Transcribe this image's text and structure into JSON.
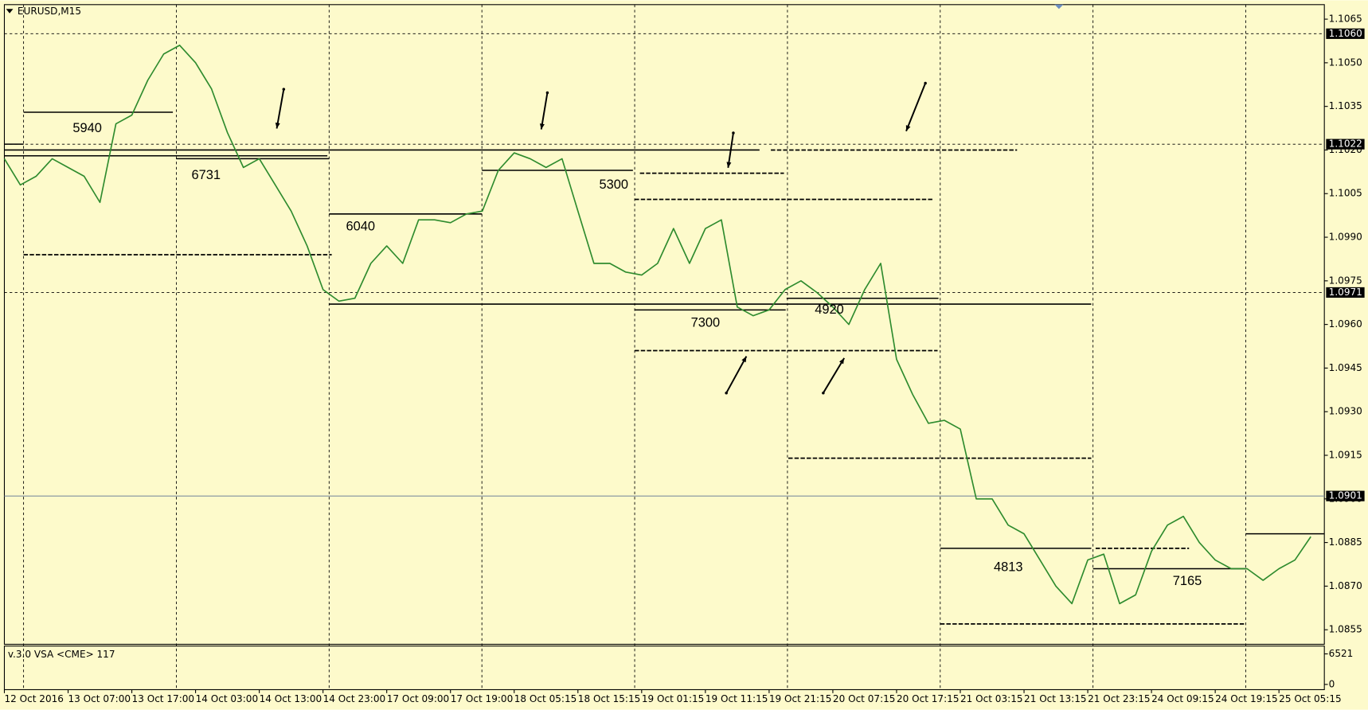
{
  "chart_data": {
    "type": "line",
    "title": "EURUSD,M15",
    "categories": [
      "12 Oct 2016",
      null,
      null,
      null,
      "13 Oct 07:00",
      null,
      null,
      null,
      "13 Oct 17:00",
      null,
      null,
      null,
      "14 Oct 03:00",
      null,
      null,
      null,
      "14 Oct 13:00",
      null,
      null,
      null,
      "14 Oct 23:00",
      null,
      null,
      null,
      "17 Oct 09:00",
      null,
      null,
      null,
      "17 Oct 19:00",
      null,
      null,
      null,
      "18 Oct 05:15",
      null,
      null,
      null,
      "18 Oct 15:15",
      null,
      null,
      null,
      "19 Oct 01:15",
      null,
      null,
      null,
      "19 Oct 11:15",
      null,
      null,
      null,
      "19 Oct 21:15",
      null,
      null,
      null,
      "20 Oct 07:15",
      null,
      null,
      null,
      "20 Oct 17:15",
      null,
      null,
      null,
      "21 Oct 03:15",
      null,
      null,
      null,
      "21 Oct 13:15",
      null,
      null,
      null,
      "21 Oct 23:15",
      null,
      null,
      null,
      "24 Oct 09:15",
      null,
      null,
      null,
      "24 Oct 19:15",
      null,
      null,
      null,
      "25 Oct 05:15",
      null,
      null
    ],
    "values": [
      1.1017,
      1.1008,
      1.1011,
      1.1017,
      1.1014,
      1.1011,
      1.1002,
      1.1029,
      1.1032,
      1.1044,
      1.1053,
      1.1056,
      1.105,
      1.1041,
      1.1026,
      1.1014,
      1.1017,
      1.1008,
      1.0999,
      1.0987,
      1.0972,
      1.0968,
      1.0969,
      1.0981,
      1.0987,
      1.0981,
      1.0996,
      1.0996,
      1.0995,
      1.0998,
      1.0999,
      1.1013,
      1.1019,
      1.1017,
      1.1014,
      1.1017,
      1.0999,
      1.0981,
      1.0981,
      1.0978,
      1.0977,
      1.0981,
      1.0993,
      1.0981,
      1.0993,
      1.0996,
      1.0966,
      1.0963,
      1.0965,
      1.0972,
      1.0975,
      1.0971,
      1.0966,
      1.096,
      1.0972,
      1.0981,
      1.0948,
      1.0936,
      1.0926,
      1.0927,
      1.0924,
      1.09,
      1.09,
      1.0891,
      1.0888,
      1.0879,
      1.087,
      1.0864,
      1.0879,
      1.0881,
      1.0864,
      1.0867,
      1.0882,
      1.0891,
      1.0894,
      1.0885,
      1.0879,
      1.0876,
      1.0876,
      1.0872,
      1.0876,
      1.0879,
      1.0887
    ],
    "color": "#2e8b2e",
    "ylim": [
      1.085,
      1.107
    ],
    "yticks": [
      {
        "value": 1.1065,
        "label": "1.1065"
      },
      {
        "value": 1.105,
        "label": "1.1050"
      },
      {
        "value": 1.1035,
        "label": "1.1035"
      },
      {
        "value": 1.102,
        "label": "1.1020"
      },
      {
        "value": 1.1005,
        "label": "1.1005"
      },
      {
        "value": 1.099,
        "label": "1.0990"
      },
      {
        "value": 1.0975,
        "label": "1.0975"
      },
      {
        "value": 1.096,
        "label": "1.0960"
      },
      {
        "value": 1.0945,
        "label": "1.0945"
      },
      {
        "value": 1.093,
        "label": "1.0930"
      },
      {
        "value": 1.0915,
        "label": "1.0915"
      },
      {
        "value": 1.09,
        "label": "1.0900"
      },
      {
        "value": 1.0885,
        "label": "1.0885"
      },
      {
        "value": 1.087,
        "label": "1.0870"
      },
      {
        "value": 1.0855,
        "label": "1.0855"
      }
    ],
    "price_markers": [
      {
        "value": 1.106,
        "label": "1.1060",
        "style": "dashed"
      },
      {
        "value": 1.1022,
        "label": "1.1022",
        "style": "dashed"
      },
      {
        "value": 1.0971,
        "label": "1.0971",
        "style": "dashed"
      },
      {
        "value": 1.0901,
        "label": "1.0901",
        "style": "solid"
      }
    ],
    "levels": [
      {
        "value": 1.1033,
        "style": "solid"
      },
      {
        "value": 1.102,
        "style": "solid"
      },
      {
        "value": 1.1018,
        "style": "solid"
      },
      {
        "value": 1.1017,
        "style": "solid"
      },
      {
        "value": 1.0984,
        "style": "dashed"
      },
      {
        "value": 1.0998,
        "style": "solid"
      },
      {
        "value": 1.0967,
        "style": "solid"
      },
      {
        "value": 1.1013,
        "style": "solid"
      },
      {
        "value": 1.1012,
        "style": "dashed"
      },
      {
        "value": 1.1003,
        "style": "dashed"
      },
      {
        "value": 1.102,
        "style": "dashed"
      },
      {
        "value": 1.0965,
        "style": "solid"
      },
      {
        "value": 1.0951,
        "style": "dashed"
      },
      {
        "value": 1.0969,
        "style": "solid"
      },
      {
        "value": 1.0914,
        "style": "dashed"
      },
      {
        "value": 1.0883,
        "style": "solid"
      },
      {
        "value": 1.0857,
        "style": "dashed"
      },
      {
        "value": 1.0883,
        "style": "dashed"
      },
      {
        "value": 1.0876,
        "style": "solid"
      },
      {
        "value": 1.0888,
        "style": "solid"
      },
      {
        "value": 1.1022,
        "style": "solid"
      }
    ],
    "annotations": [
      "5940",
      "6731",
      "6040",
      "5300",
      "7300",
      "4920",
      "4813",
      "7165"
    ],
    "volume_panel": {
      "title": "v.3.0 VSA <CME> 117",
      "ylim": [
        0,
        6521
      ],
      "yticks": [
        6521,
        0
      ]
    }
  }
}
